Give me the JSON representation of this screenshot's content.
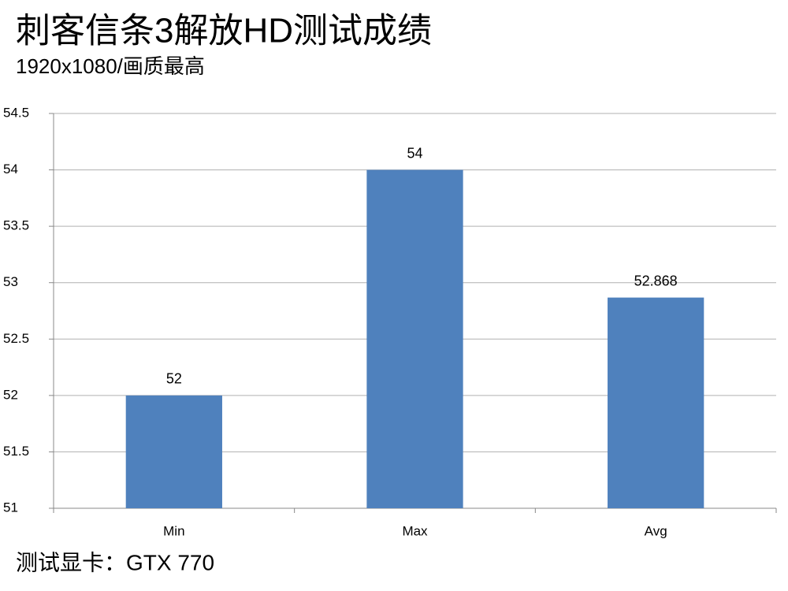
{
  "chart_data": {
    "type": "bar",
    "title": "刺客信条3解放HD测试成绩",
    "subtitle": "1920x1080/画质最高",
    "footnote": "测试显卡：GTX 770",
    "categories": [
      "Min",
      "Max",
      "Avg"
    ],
    "values": [
      52,
      54,
      52.868
    ],
    "color": "#4f81bd",
    "ylim": [
      51,
      54.5
    ],
    "yticks": [
      51,
      51.5,
      52,
      52.5,
      53,
      53.5,
      54,
      54.5
    ],
    "grid": true
  }
}
